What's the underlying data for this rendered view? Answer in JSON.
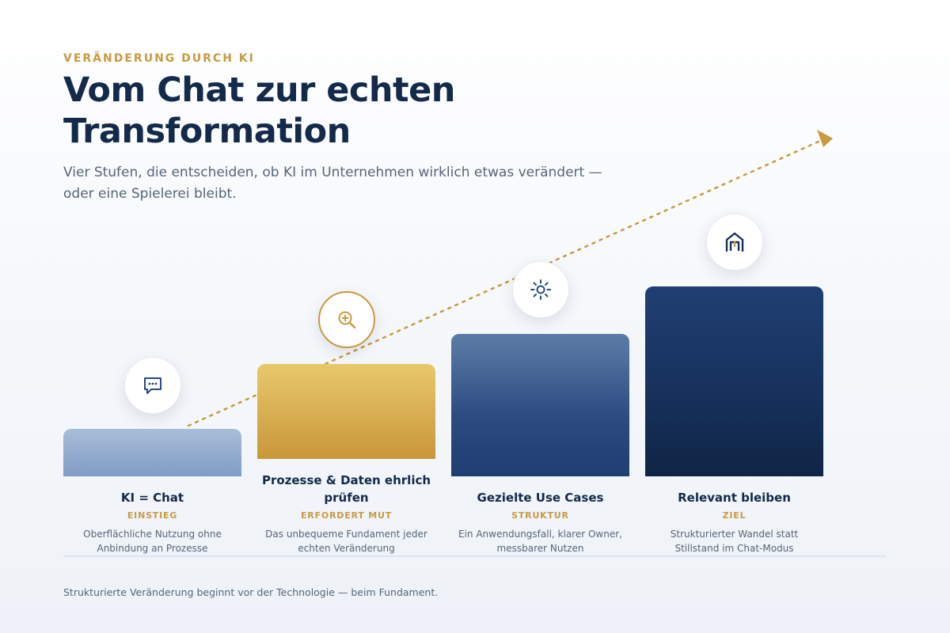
{
  "header": {
    "eyebrow": "VERÄNDERUNG DURCH KI",
    "title": "Vom Chat zur echten Transformation",
    "subtitle": "Vier Stufen, die entscheiden, ob KI im Unternehmen wirklich etwas verändert — oder eine Spielerei bleibt."
  },
  "stages": [
    {
      "title": "KI = Chat",
      "tag": "EINSTIEG",
      "description": "Oberflächliche Nutzung ohne Anbindung an Prozesse",
      "icon": "chat-bubble-icon"
    },
    {
      "title": "Prozesse & Daten ehrlich prüfen",
      "tag": "ERFORDERT MUT",
      "description": "Das unbequeme Fundament jeder echten Veränderung",
      "icon": "magnifier-plus-icon"
    },
    {
      "title": "Gezielte Use Cases",
      "tag": "STRUKTUR",
      "description": "Ein Anwendungsfall, klarer Owner, messbarer Nutzen",
      "icon": "sun-icon"
    },
    {
      "title": "Relevant bleiben",
      "tag": "ZIEL",
      "description": "Strukturierter Wandel statt Stillstand im Chat-Modus",
      "icon": "house-icon"
    }
  ],
  "footer": "Strukturierte Veränderung beginnt vor der Technologie — beim Fundament.",
  "colors": {
    "navy": "#132a4a",
    "gold": "#c99a40",
    "text_muted": "#56657a",
    "bar_1": "#8fa9cd",
    "bar_2": "#d9b04f",
    "bar_3": "#3e5f92",
    "bar_4": "#16305a"
  }
}
